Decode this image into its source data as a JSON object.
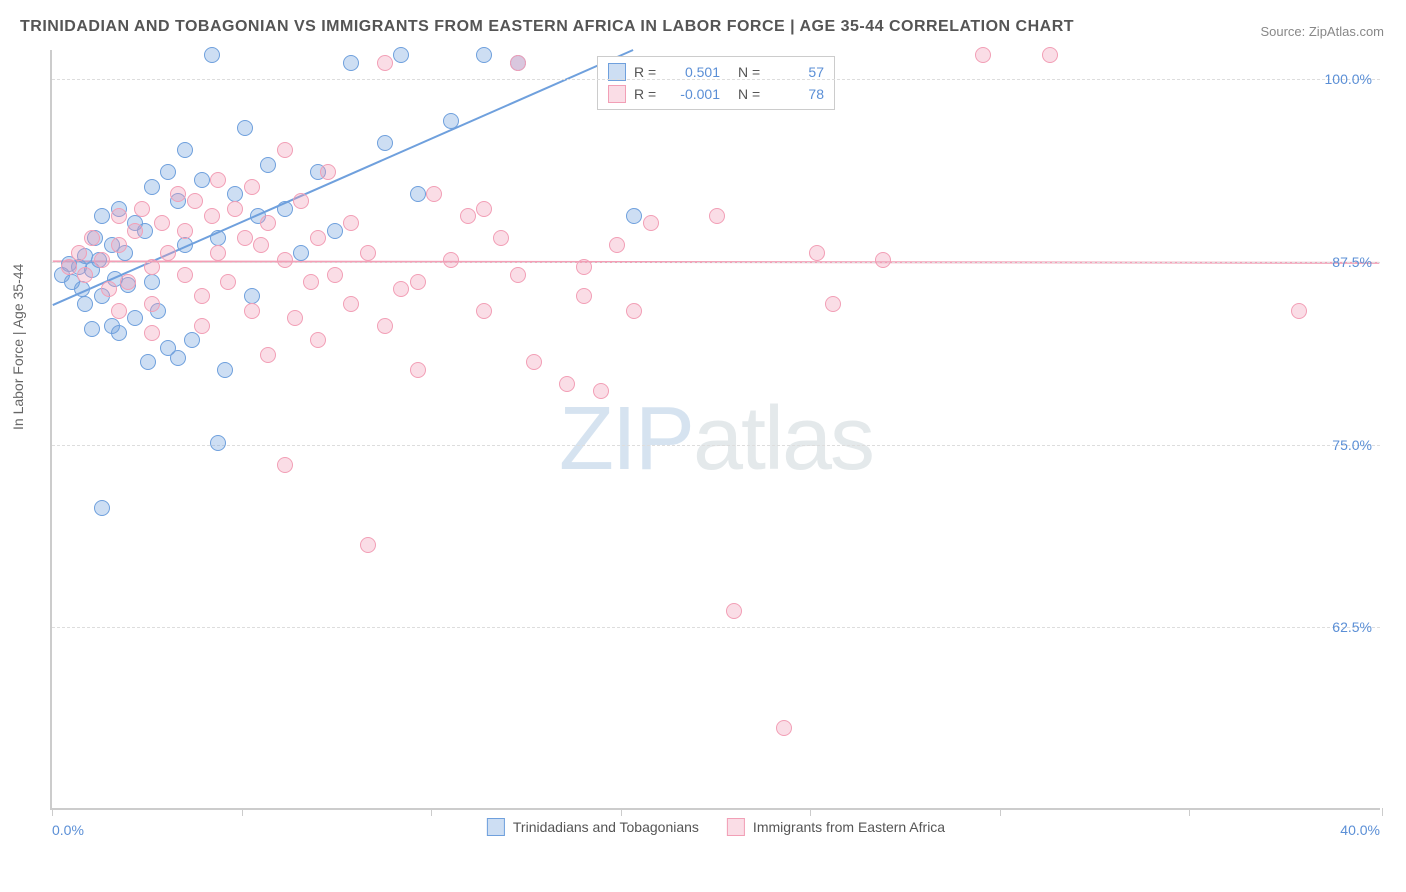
{
  "title": "TRINIDADIAN AND TOBAGONIAN VS IMMIGRANTS FROM EASTERN AFRICA IN LABOR FORCE | AGE 35-44 CORRELATION CHART",
  "source": "Source: ZipAtlas.com",
  "ylabel": "In Labor Force | Age 35-44",
  "watermark_prefix": "ZIP",
  "watermark_suffix": "atlas",
  "chart": {
    "type": "scatter",
    "background_color": "#ffffff",
    "grid_color": "#dddddd",
    "axis_color": "#cccccc",
    "xlim": [
      0,
      40
    ],
    "ylim": [
      50,
      102
    ],
    "xtick_positions": [
      0,
      5.7,
      11.4,
      17.1,
      22.8,
      28.5,
      34.2,
      40
    ],
    "ytick_positions": [
      62.5,
      75.0,
      87.5,
      100.0
    ],
    "ytick_labels": [
      "62.5%",
      "75.0%",
      "87.5%",
      "100.0%"
    ],
    "x_left_label": "0.0%",
    "x_right_label": "40.0%",
    "marker_radius": 8,
    "marker_border_width": 1.2,
    "marker_fill_opacity": 0.35,
    "series": [
      {
        "name": "Trinidadians and Tobagonians",
        "color": "#6fa0dd",
        "fill": "rgba(111,160,221,0.35)",
        "r_value": "0.501",
        "n_value": "57",
        "regression": {
          "x1": 0,
          "y1": 84.5,
          "x2": 17.5,
          "y2": 102
        },
        "line_width": 2,
        "points": [
          [
            0.3,
            86.5
          ],
          [
            0.5,
            87.2
          ],
          [
            0.6,
            86.0
          ],
          [
            0.8,
            87.0
          ],
          [
            0.9,
            85.5
          ],
          [
            1.0,
            87.8
          ],
          [
            1.0,
            84.5
          ],
          [
            1.2,
            86.8
          ],
          [
            1.3,
            89.0
          ],
          [
            1.4,
            87.5
          ],
          [
            1.5,
            85.0
          ],
          [
            1.5,
            90.5
          ],
          [
            1.8,
            88.5
          ],
          [
            1.9,
            86.2
          ],
          [
            2.0,
            91.0
          ],
          [
            2.0,
            82.5
          ],
          [
            2.2,
            88.0
          ],
          [
            2.3,
            85.8
          ],
          [
            2.5,
            90.0
          ],
          [
            2.5,
            83.5
          ],
          [
            2.8,
            89.5
          ],
          [
            2.9,
            80.5
          ],
          [
            3.0,
            92.5
          ],
          [
            3.0,
            86.0
          ],
          [
            3.2,
            84.0
          ],
          [
            3.5,
            93.5
          ],
          [
            3.5,
            81.5
          ],
          [
            3.8,
            91.5
          ],
          [
            4.0,
            88.5
          ],
          [
            4.0,
            95.0
          ],
          [
            4.2,
            82.0
          ],
          [
            4.5,
            93.0
          ],
          [
            4.8,
            101.5
          ],
          [
            5.0,
            89.0
          ],
          [
            5.2,
            80.0
          ],
          [
            5.5,
            92.0
          ],
          [
            5.8,
            96.5
          ],
          [
            6.0,
            85.0
          ],
          [
            6.2,
            90.5
          ],
          [
            6.5,
            94.0
          ],
          [
            7.0,
            91.0
          ],
          [
            7.5,
            88.0
          ],
          [
            8.0,
            93.5
          ],
          [
            8.5,
            89.5
          ],
          [
            9.0,
            101.0
          ],
          [
            10.0,
            95.5
          ],
          [
            10.5,
            101.5
          ],
          [
            11.0,
            92.0
          ],
          [
            12.0,
            97.0
          ],
          [
            13.0,
            101.5
          ],
          [
            14.0,
            101.0
          ],
          [
            17.5,
            90.5
          ],
          [
            1.5,
            70.5
          ],
          [
            5.0,
            75.0
          ],
          [
            3.8,
            80.8
          ],
          [
            1.2,
            82.8
          ],
          [
            1.8,
            83.0
          ]
        ]
      },
      {
        "name": "Immigrants from Eastern Africa",
        "color": "#f29fb6",
        "fill": "rgba(242,159,182,0.35)",
        "r_value": "-0.001",
        "n_value": "78",
        "regression": {
          "x1": 0,
          "y1": 87.5,
          "x2": 40,
          "y2": 87.4
        },
        "line_width": 2,
        "points": [
          [
            0.5,
            87.0
          ],
          [
            0.8,
            88.0
          ],
          [
            1.0,
            86.5
          ],
          [
            1.2,
            89.0
          ],
          [
            1.5,
            87.5
          ],
          [
            1.7,
            85.5
          ],
          [
            2.0,
            88.5
          ],
          [
            2.0,
            90.5
          ],
          [
            2.3,
            86.0
          ],
          [
            2.5,
            89.5
          ],
          [
            2.7,
            91.0
          ],
          [
            3.0,
            87.0
          ],
          [
            3.0,
            84.5
          ],
          [
            3.3,
            90.0
          ],
          [
            3.5,
            88.0
          ],
          [
            3.8,
            92.0
          ],
          [
            4.0,
            86.5
          ],
          [
            4.0,
            89.5
          ],
          [
            4.3,
            91.5
          ],
          [
            4.5,
            85.0
          ],
          [
            4.8,
            90.5
          ],
          [
            5.0,
            88.0
          ],
          [
            5.0,
            93.0
          ],
          [
            5.3,
            86.0
          ],
          [
            5.5,
            91.0
          ],
          [
            5.8,
            89.0
          ],
          [
            6.0,
            92.5
          ],
          [
            6.0,
            84.0
          ],
          [
            6.3,
            88.5
          ],
          [
            6.5,
            90.0
          ],
          [
            7.0,
            87.5
          ],
          [
            7.0,
            95.0
          ],
          [
            7.3,
            83.5
          ],
          [
            7.5,
            91.5
          ],
          [
            8.0,
            89.0
          ],
          [
            8.0,
            82.0
          ],
          [
            8.3,
            93.5
          ],
          [
            8.5,
            86.5
          ],
          [
            9.0,
            84.5
          ],
          [
            9.0,
            90.0
          ],
          [
            9.5,
            88.0
          ],
          [
            10.0,
            101.0
          ],
          [
            10.5,
            85.5
          ],
          [
            11.0,
            80.0
          ],
          [
            11.5,
            92.0
          ],
          [
            12.0,
            87.5
          ],
          [
            12.5,
            90.5
          ],
          [
            13.0,
            84.0
          ],
          [
            13.5,
            89.0
          ],
          [
            14.0,
            101.0
          ],
          [
            14.5,
            80.5
          ],
          [
            16.0,
            85.0
          ],
          [
            16.5,
            78.5
          ],
          [
            17.0,
            88.5
          ],
          [
            17.5,
            84.0
          ],
          [
            18.0,
            90.0
          ],
          [
            7.0,
            73.5
          ],
          [
            9.5,
            68.0
          ],
          [
            15.5,
            79.0
          ],
          [
            16.0,
            87.0
          ],
          [
            20.5,
            63.5
          ],
          [
            22.0,
            55.5
          ],
          [
            23.0,
            88.0
          ],
          [
            23.5,
            84.5
          ],
          [
            20.0,
            90.5
          ],
          [
            25.0,
            87.5
          ],
          [
            28.0,
            101.5
          ],
          [
            30.0,
            101.5
          ],
          [
            37.5,
            84.0
          ],
          [
            10.0,
            83.0
          ],
          [
            11.0,
            86.0
          ],
          [
            13.0,
            91.0
          ],
          [
            14.0,
            86.5
          ],
          [
            6.5,
            81.0
          ],
          [
            7.8,
            86.0
          ],
          [
            3.0,
            82.5
          ],
          [
            4.5,
            83.0
          ],
          [
            2.0,
            84.0
          ]
        ]
      }
    ]
  }
}
